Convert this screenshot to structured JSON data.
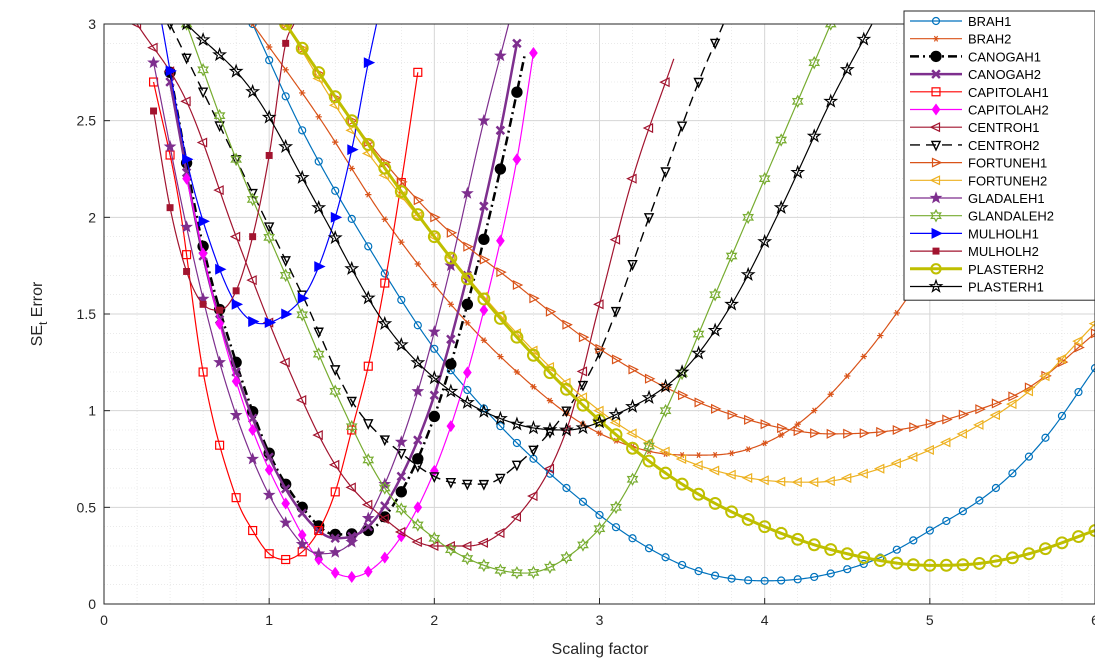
{
  "chart_data": {
    "type": "line",
    "xlabel": "Scaling factor",
    "ylabel": "SE",
    "ylabel_sub": "t",
    "ylabel_suffix": " Error",
    "xlim": [
      0,
      6
    ],
    "ylim": [
      0,
      3
    ],
    "xticks": [
      0,
      1,
      2,
      3,
      4,
      5,
      6
    ],
    "yticks": [
      0,
      0.5,
      1,
      1.5,
      2,
      2.5,
      3
    ],
    "xtick_labels": [
      "0",
      "1",
      "2",
      "3",
      "4",
      "5",
      "6"
    ],
    "ytick_labels": [
      "0",
      "0.5",
      "1",
      "1.5",
      "2",
      "2.5",
      "3"
    ],
    "grid": "on",
    "legend_position": "top-right",
    "series": [
      {
        "name": "BRAH1",
        "color": "#0072bd",
        "marker": "circle",
        "dash": "solid",
        "lw": 1.2,
        "ms": 9,
        "fill": "none",
        "xmin": 0.9,
        "xmax": 6.0,
        "curve": [
          [
            0.9,
            3.0
          ],
          [
            1.2,
            2.45
          ],
          [
            1.6,
            1.85
          ],
          [
            2.0,
            1.32
          ],
          [
            2.4,
            0.92
          ],
          [
            2.8,
            0.6
          ],
          [
            3.2,
            0.34
          ],
          [
            3.6,
            0.17
          ],
          [
            4.0,
            0.12
          ],
          [
            4.3,
            0.14
          ],
          [
            4.7,
            0.24
          ],
          [
            5.0,
            0.38
          ],
          [
            5.4,
            0.6
          ],
          [
            5.7,
            0.86
          ],
          [
            6.0,
            1.22
          ]
        ]
      },
      {
        "name": "BRAH2",
        "color": "#d95319",
        "marker": "asterisk",
        "dash": "solid",
        "lw": 1.2,
        "ms": 9,
        "fill": "none",
        "xmin": 0.9,
        "xmax": 6.0,
        "curve": [
          [
            0.9,
            3.0
          ],
          [
            1.3,
            2.52
          ],
          [
            1.7,
            1.99
          ],
          [
            2.1,
            1.55
          ],
          [
            2.5,
            1.2
          ],
          [
            2.9,
            0.93
          ],
          [
            3.3,
            0.79
          ],
          [
            3.6,
            0.77
          ],
          [
            3.8,
            0.78
          ],
          [
            4.2,
            0.93
          ],
          [
            4.6,
            1.28
          ],
          [
            5.0,
            1.75
          ],
          [
            5.4,
            2.25
          ],
          [
            5.7,
            2.65
          ],
          [
            6.0,
            3.0
          ]
        ]
      },
      {
        "name": "CANOGAH1",
        "color": "#000000",
        "marker": "circle",
        "dash": "dashdot",
        "lw": 2.5,
        "ms": 12,
        "fill": "#000000",
        "xmin": 0.4,
        "xmax": 2.55,
        "curve": [
          [
            0.4,
            2.75
          ],
          [
            0.6,
            1.85
          ],
          [
            0.8,
            1.25
          ],
          [
            1.0,
            0.78
          ],
          [
            1.2,
            0.5
          ],
          [
            1.4,
            0.36
          ],
          [
            1.6,
            0.38
          ],
          [
            1.8,
            0.58
          ],
          [
            2.0,
            0.97
          ],
          [
            2.2,
            1.55
          ],
          [
            2.4,
            2.25
          ],
          [
            2.55,
            2.85
          ]
        ]
      },
      {
        "name": "CANOGAH2",
        "color": "#7e2f8e",
        "marker": "x",
        "dash": "solid",
        "lw": 2.5,
        "ms": 11,
        "fill": "none",
        "xmin": 0.4,
        "xmax": 2.5,
        "curve": [
          [
            0.4,
            2.7
          ],
          [
            0.6,
            1.8
          ],
          [
            0.8,
            1.2
          ],
          [
            1.0,
            0.76
          ],
          [
            1.2,
            0.47
          ],
          [
            1.4,
            0.34
          ],
          [
            1.6,
            0.4
          ],
          [
            1.8,
            0.66
          ],
          [
            2.0,
            1.08
          ],
          [
            2.2,
            1.7
          ],
          [
            2.4,
            2.45
          ],
          [
            2.5,
            2.9
          ]
        ]
      },
      {
        "name": "CAPITOLAH1",
        "color": "#ff0000",
        "marker": "square",
        "dash": "solid",
        "lw": 1.2,
        "ms": 11,
        "fill": "none",
        "xmin": 0.3,
        "xmax": 1.9,
        "curve": [
          [
            0.3,
            2.7
          ],
          [
            0.45,
            2.1
          ],
          [
            0.6,
            1.2
          ],
          [
            0.8,
            0.55
          ],
          [
            0.9,
            0.38
          ],
          [
            1.0,
            0.26
          ],
          [
            1.1,
            0.23
          ],
          [
            1.2,
            0.27
          ],
          [
            1.3,
            0.38
          ],
          [
            1.4,
            0.58
          ],
          [
            1.5,
            0.9
          ],
          [
            1.6,
            1.23
          ],
          [
            1.7,
            1.66
          ],
          [
            1.8,
            2.18
          ],
          [
            1.9,
            2.75
          ]
        ]
      },
      {
        "name": "CAPITOLAH2",
        "color": "#ff00ff",
        "marker": "diamond",
        "dash": "solid",
        "lw": 1.2,
        "ms": 10,
        "fill": "#ff00ff",
        "xmin": 0.5,
        "xmax": 2.6,
        "curve": [
          [
            0.5,
            2.2
          ],
          [
            0.7,
            1.45
          ],
          [
            0.9,
            0.9
          ],
          [
            1.1,
            0.52
          ],
          [
            1.3,
            0.23
          ],
          [
            1.5,
            0.14
          ],
          [
            1.7,
            0.24
          ],
          [
            1.9,
            0.5
          ],
          [
            2.1,
            0.92
          ],
          [
            2.3,
            1.52
          ],
          [
            2.5,
            2.3
          ],
          [
            2.6,
            2.85
          ]
        ]
      },
      {
        "name": "CENTROH1",
        "color": "#a2142f",
        "marker": "triangle-left",
        "dash": "solid",
        "lw": 1.2,
        "ms": 10,
        "fill": "none",
        "xmin": 0.2,
        "xmax": 3.45,
        "curve": [
          [
            0.2,
            3.0
          ],
          [
            0.5,
            2.6
          ],
          [
            0.8,
            1.9
          ],
          [
            1.1,
            1.25
          ],
          [
            1.4,
            0.72
          ],
          [
            1.7,
            0.44
          ],
          [
            2.0,
            0.3
          ],
          [
            2.2,
            0.3
          ],
          [
            2.5,
            0.45
          ],
          [
            2.8,
            0.9
          ],
          [
            3.0,
            1.55
          ],
          [
            3.2,
            2.2
          ],
          [
            3.45,
            2.82
          ]
        ]
      },
      {
        "name": "CENTROH2",
        "color": "#000000",
        "marker": "triangle-down",
        "dash": "dashed",
        "lw": 1.4,
        "ms": 10,
        "fill": "none",
        "xmin": 0.4,
        "xmax": 3.75,
        "curve": [
          [
            0.4,
            3.0
          ],
          [
            0.8,
            2.3
          ],
          [
            1.2,
            1.6
          ],
          [
            1.5,
            1.05
          ],
          [
            1.8,
            0.78
          ],
          [
            2.1,
            0.63
          ],
          [
            2.3,
            0.62
          ],
          [
            2.5,
            0.72
          ],
          [
            2.8,
            1.0
          ],
          [
            3.0,
            1.3
          ],
          [
            3.3,
            2.0
          ],
          [
            3.6,
            2.7
          ],
          [
            3.75,
            3.0
          ]
        ]
      },
      {
        "name": "FORTUNEH1",
        "color": "#d95319",
        "marker": "triangle-right",
        "dash": "solid",
        "lw": 1.2,
        "ms": 10,
        "fill": "none",
        "xmin": 1.1,
        "xmax": 6.0,
        "curve": [
          [
            1.1,
            3.0
          ],
          [
            1.5,
            2.5
          ],
          [
            2.0,
            2.0
          ],
          [
            2.5,
            1.65
          ],
          [
            3.0,
            1.32
          ],
          [
            3.5,
            1.08
          ],
          [
            4.0,
            0.93
          ],
          [
            4.4,
            0.88
          ],
          [
            4.8,
            0.9
          ],
          [
            5.2,
            0.98
          ],
          [
            5.6,
            1.12
          ],
          [
            6.0,
            1.4
          ]
        ]
      },
      {
        "name": "FORTUNEH2",
        "color": "#edb120",
        "marker": "triangle-left",
        "dash": "solid",
        "lw": 1.2,
        "ms": 10,
        "fill": "none",
        "xmin": 1.1,
        "xmax": 6.0,
        "curve": [
          [
            1.1,
            3.0
          ],
          [
            1.5,
            2.45
          ],
          [
            2.0,
            1.9
          ],
          [
            2.5,
            1.4
          ],
          [
            3.0,
            1.0
          ],
          [
            3.5,
            0.75
          ],
          [
            4.0,
            0.64
          ],
          [
            4.3,
            0.63
          ],
          [
            4.7,
            0.7
          ],
          [
            5.2,
            0.88
          ],
          [
            5.6,
            1.1
          ],
          [
            6.0,
            1.45
          ]
        ]
      },
      {
        "name": "GLADALEH1",
        "color": "#7e2f8e",
        "marker": "star",
        "dash": "solid",
        "lw": 1.2,
        "ms": 10,
        "fill": "#7e2f8e",
        "xmin": 0.3,
        "xmax": 2.45,
        "curve": [
          [
            0.3,
            2.8
          ],
          [
            0.5,
            1.95
          ],
          [
            0.7,
            1.25
          ],
          [
            0.9,
            0.75
          ],
          [
            1.1,
            0.42
          ],
          [
            1.3,
            0.26
          ],
          [
            1.5,
            0.32
          ],
          [
            1.7,
            0.62
          ],
          [
            1.9,
            1.1
          ],
          [
            2.1,
            1.75
          ],
          [
            2.3,
            2.5
          ],
          [
            2.45,
            3.0
          ]
        ]
      },
      {
        "name": "GLANDALEH2",
        "color": "#77ac30",
        "marker": "hexagram",
        "dash": "solid",
        "lw": 1.2,
        "ms": 11,
        "fill": "none",
        "xmin": 0.5,
        "xmax": 4.4,
        "curve": [
          [
            0.5,
            3.0
          ],
          [
            0.8,
            2.3
          ],
          [
            1.1,
            1.7
          ],
          [
            1.4,
            1.1
          ],
          [
            1.7,
            0.6
          ],
          [
            2.0,
            0.34
          ],
          [
            2.3,
            0.2
          ],
          [
            2.55,
            0.16
          ],
          [
            2.8,
            0.24
          ],
          [
            3.1,
            0.5
          ],
          [
            3.4,
            1.0
          ],
          [
            3.7,
            1.6
          ],
          [
            4.0,
            2.2
          ],
          [
            4.3,
            2.8
          ],
          [
            4.4,
            3.0
          ]
        ]
      },
      {
        "name": "MULHOLH1",
        "color": "#0000ff",
        "marker": "triangle-right",
        "dash": "solid",
        "lw": 1.2,
        "ms": 11,
        "fill": "#0000ff",
        "xmin": 0.35,
        "xmax": 1.65,
        "curve": [
          [
            0.35,
            3.0
          ],
          [
            0.5,
            2.3
          ],
          [
            0.65,
            1.85
          ],
          [
            0.8,
            1.55
          ],
          [
            0.95,
            1.45
          ],
          [
            1.1,
            1.5
          ],
          [
            1.25,
            1.65
          ],
          [
            1.4,
            2.0
          ],
          [
            1.5,
            2.35
          ],
          [
            1.6,
            2.8
          ],
          [
            1.65,
            3.0
          ]
        ]
      },
      {
        "name": "MULHOLH2",
        "color": "#a2142f",
        "marker": "square",
        "dash": "solid",
        "lw": 1.2,
        "ms": 8,
        "fill": "#a2142f",
        "xmin": 0.3,
        "xmax": 1.15,
        "curve": [
          [
            0.3,
            2.55
          ],
          [
            0.4,
            2.05
          ],
          [
            0.5,
            1.72
          ],
          [
            0.6,
            1.55
          ],
          [
            0.7,
            1.52
          ],
          [
            0.8,
            1.62
          ],
          [
            0.9,
            1.9
          ],
          [
            1.0,
            2.32
          ],
          [
            1.1,
            2.9
          ],
          [
            1.15,
            3.0
          ]
        ]
      },
      {
        "name": "PLASTERH2",
        "color": "#bfbf00",
        "marker": "circle",
        "dash": "solid",
        "lw": 3,
        "ms": 14,
        "fill": "none",
        "xmin": 1.1,
        "xmax": 6.0,
        "curve": [
          [
            1.1,
            3.0
          ],
          [
            1.5,
            2.5
          ],
          [
            2.0,
            1.9
          ],
          [
            2.5,
            1.38
          ],
          [
            3.0,
            0.95
          ],
          [
            3.5,
            0.62
          ],
          [
            4.0,
            0.4
          ],
          [
            4.5,
            0.26
          ],
          [
            5.0,
            0.2
          ],
          [
            5.3,
            0.21
          ],
          [
            5.6,
            0.26
          ],
          [
            6.0,
            0.38
          ]
        ]
      },
      {
        "name": "PLASTERH1",
        "color": "#000000",
        "marker": "pentagram",
        "dash": "solid",
        "lw": 1.2,
        "ms": 12,
        "fill": "none",
        "xmin": 0.5,
        "xmax": 4.65,
        "curve": [
          [
            0.5,
            3.0
          ],
          [
            0.9,
            2.65
          ],
          [
            1.3,
            2.05
          ],
          [
            1.7,
            1.45
          ],
          [
            2.1,
            1.1
          ],
          [
            2.5,
            0.93
          ],
          [
            2.8,
            0.9
          ],
          [
            3.1,
            0.98
          ],
          [
            3.5,
            1.2
          ],
          [
            3.8,
            1.55
          ],
          [
            4.1,
            2.05
          ],
          [
            4.4,
            2.6
          ],
          [
            4.65,
            3.0
          ]
        ]
      }
    ]
  }
}
